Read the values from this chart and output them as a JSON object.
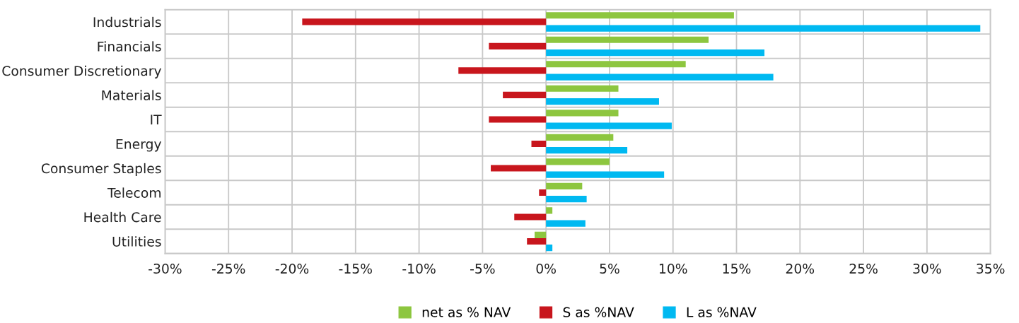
{
  "chart_data": {
    "type": "bar",
    "orientation": "horizontal",
    "categories": [
      "Industrials",
      "Financials",
      "Consumer Discretionary",
      "Materials",
      "IT",
      "Energy",
      "Consumer Staples",
      "Telecom",
      "Health Care",
      "Utilities"
    ],
    "series": [
      {
        "name": "net as % NAV",
        "color": "#8dc63f",
        "values": [
          14.8,
          12.8,
          11.0,
          5.7,
          5.7,
          5.3,
          5.0,
          2.85,
          0.5,
          -0.9
        ]
      },
      {
        "name": "S as %NAV",
        "color": "#c8161d",
        "values": [
          -19.2,
          -4.5,
          -6.9,
          -3.4,
          -4.5,
          -1.15,
          -4.35,
          -0.55,
          -2.5,
          -1.5
        ]
      },
      {
        "name": "L as %NAV",
        "color": "#00b9f1",
        "values": [
          34.2,
          17.2,
          17.9,
          8.9,
          9.9,
          6.4,
          9.3,
          3.2,
          3.1,
          0.5
        ]
      }
    ],
    "xlim": [
      -30,
      35
    ],
    "xticks": [
      {
        "value": -30,
        "label": "-30%"
      },
      {
        "value": -25,
        "label": "-25%"
      },
      {
        "value": -20,
        "label": "-20%"
      },
      {
        "value": -15,
        "label": "-15%"
      },
      {
        "value": -10,
        "label": "-10%"
      },
      {
        "value": -5,
        "label": "-5%"
      },
      {
        "value": 0,
        "label": "0%"
      },
      {
        "value": 5,
        "label": "5%"
      },
      {
        "value": 10,
        "label": "10%"
      },
      {
        "value": 15,
        "label": "15%"
      },
      {
        "value": 20,
        "label": "20%"
      },
      {
        "value": 25,
        "label": "25%"
      },
      {
        "value": 30,
        "label": "30%"
      },
      {
        "value": 35,
        "label": "35%"
      }
    ],
    "grid": true,
    "legend": "bottom"
  }
}
